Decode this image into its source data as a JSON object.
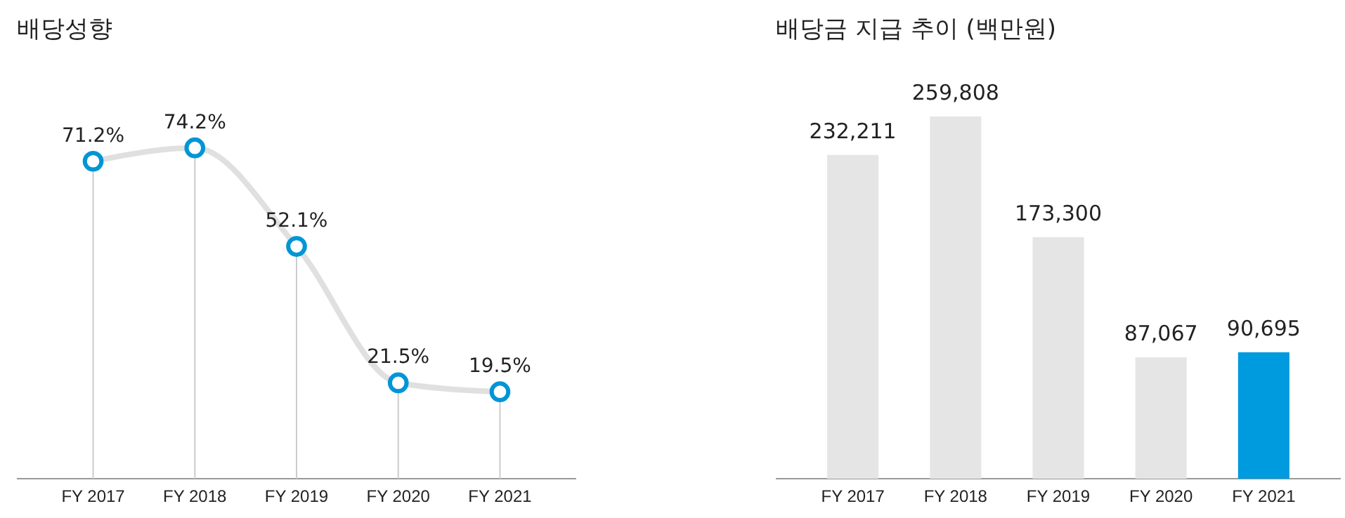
{
  "chart_data": [
    {
      "type": "line",
      "title": "배당성향",
      "categories": [
        "FY 2017",
        "FY 2018",
        "FY 2019",
        "FY 2020",
        "FY 2021"
      ],
      "series": [
        {
          "color": "#e0e0e0",
          "values": [
            71.2,
            74.2,
            52.1,
            21.5,
            19.5
          ],
          "value_labels": [
            "71.2%",
            "74.2%",
            "52.1%",
            "21.5%",
            "19.5%"
          ]
        }
      ],
      "marker": "circle",
      "grid": "x"
    },
    {
      "type": "bar",
      "title": "배당금 지급 추이 (백만원)",
      "categories": [
        "FY 2017",
        "FY 2018",
        "FY 2019",
        "FY 2020",
        "FY 2021"
      ],
      "values": [
        232211,
        259808,
        173300,
        87067,
        90695
      ],
      "colors": [
        "#e5e5e5",
        "#e5e5e5",
        "#e5e5e5",
        "#e5e5e5",
        "#009ade"
      ],
      "value_labels": [
        "232,211",
        "259,808",
        "173,300",
        "87,067",
        "90,695"
      ]
    }
  ]
}
